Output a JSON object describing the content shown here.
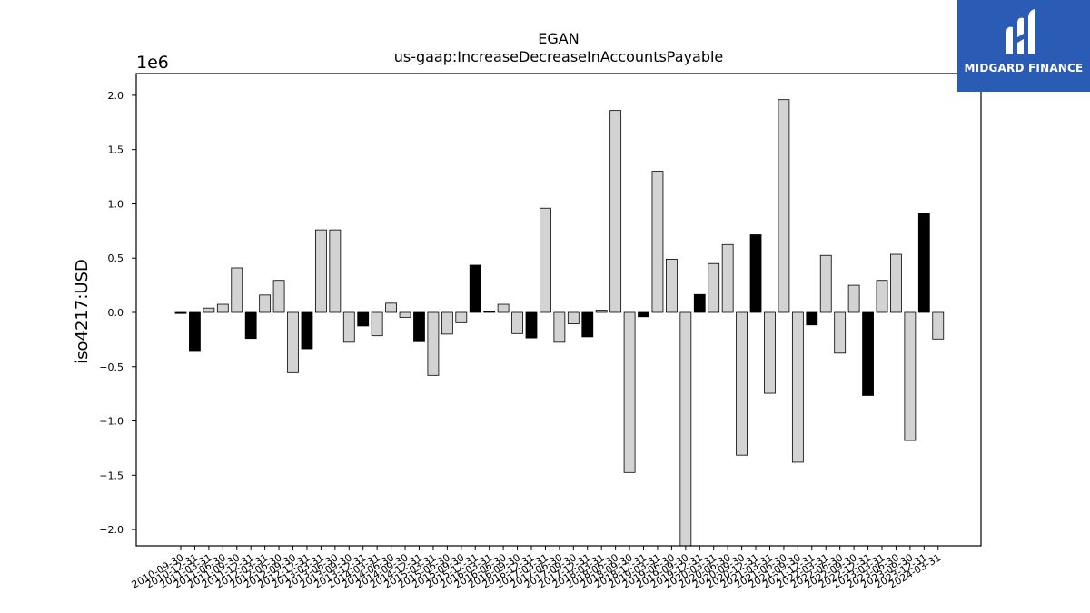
{
  "chart_data": {
    "type": "bar",
    "title": "EGAN",
    "subtitle": "us-gaap:IncreaseDecreaseInAccountsPayable",
    "ylabel": "iso4217:USD",
    "scale_label": "1e6",
    "ylim": [
      -2150000,
      2200000
    ],
    "y_ticks": [
      2.0,
      1.5,
      1.0,
      0.5,
      0.0,
      -0.5,
      -1.0,
      -1.5,
      -2.0
    ],
    "y_tick_labels": [
      "2.0",
      "1.5",
      "1.0",
      "0.5",
      "0.0",
      "−0.5",
      "−1.0",
      "−1.5",
      "−2.0"
    ],
    "grid": false,
    "colors": {
      "light": "#d3d3d3",
      "dark": "#000000",
      "edge": "#000000"
    },
    "categories": [
      "2010-09-30",
      "2010-12-31",
      "2011-03-31",
      "2011-06-30",
      "2011-09-30",
      "2011-12-31",
      "2012-03-31",
      "2012-06-30",
      "2012-09-30",
      "2012-12-31",
      "2013-03-31",
      "2013-06-30",
      "2013-09-30",
      "2013-12-31",
      "2014-03-31",
      "2014-06-30",
      "2014-09-30",
      "2014-12-31",
      "2015-03-31",
      "2015-06-30",
      "2015-09-30",
      "2015-12-31",
      "2016-03-31",
      "2016-06-30",
      "2016-09-30",
      "2016-12-31",
      "2017-03-31",
      "2017-06-30",
      "2017-09-30",
      "2017-12-31",
      "2018-03-31",
      "2018-06-30",
      "2018-09-30",
      "2018-12-31",
      "2019-03-31",
      "2019-06-30",
      "2019-09-30",
      "2019-12-31",
      "2020-03-31",
      "2020-06-30",
      "2020-09-30",
      "2020-12-31",
      "2021-03-31",
      "2021-06-30",
      "2021-09-30",
      "2021-12-31",
      "2022-03-31",
      "2022-06-30",
      "2022-09-30",
      "2022-12-31",
      "2023-03-31",
      "2023-06-30",
      "2023-09-30",
      "2023-12-31",
      "2024-03-31"
    ],
    "values": [
      -10000,
      -360000,
      40000,
      75000,
      410000,
      -240000,
      160000,
      295000,
      -555000,
      -335000,
      760000,
      760000,
      -275000,
      -125000,
      -215000,
      85000,
      -45000,
      -270000,
      -580000,
      -200000,
      -95000,
      435000,
      10000,
      75000,
      -195000,
      -235000,
      960000,
      -275000,
      -105000,
      -225000,
      20000,
      1860000,
      -1475000,
      -40000,
      1300000,
      490000,
      -2150000,
      165000,
      450000,
      625000,
      -1315000,
      715000,
      -745000,
      1960000,
      -1380000,
      -115000,
      525000,
      -375000,
      250000,
      -765000,
      295000,
      535000,
      -1180000,
      910000,
      -245000
    ],
    "highlight": [
      true,
      true,
      false,
      false,
      false,
      true,
      false,
      false,
      false,
      true,
      false,
      false,
      false,
      true,
      false,
      false,
      false,
      true,
      false,
      false,
      false,
      true,
      true,
      false,
      false,
      true,
      false,
      false,
      false,
      true,
      false,
      false,
      false,
      true,
      false,
      false,
      false,
      true,
      false,
      false,
      false,
      true,
      false,
      false,
      false,
      true,
      false,
      false,
      false,
      true,
      false,
      false,
      false,
      true,
      false
    ]
  },
  "brand": {
    "name": "MIDGARD FINANCE",
    "background": "#2b5cb5"
  }
}
